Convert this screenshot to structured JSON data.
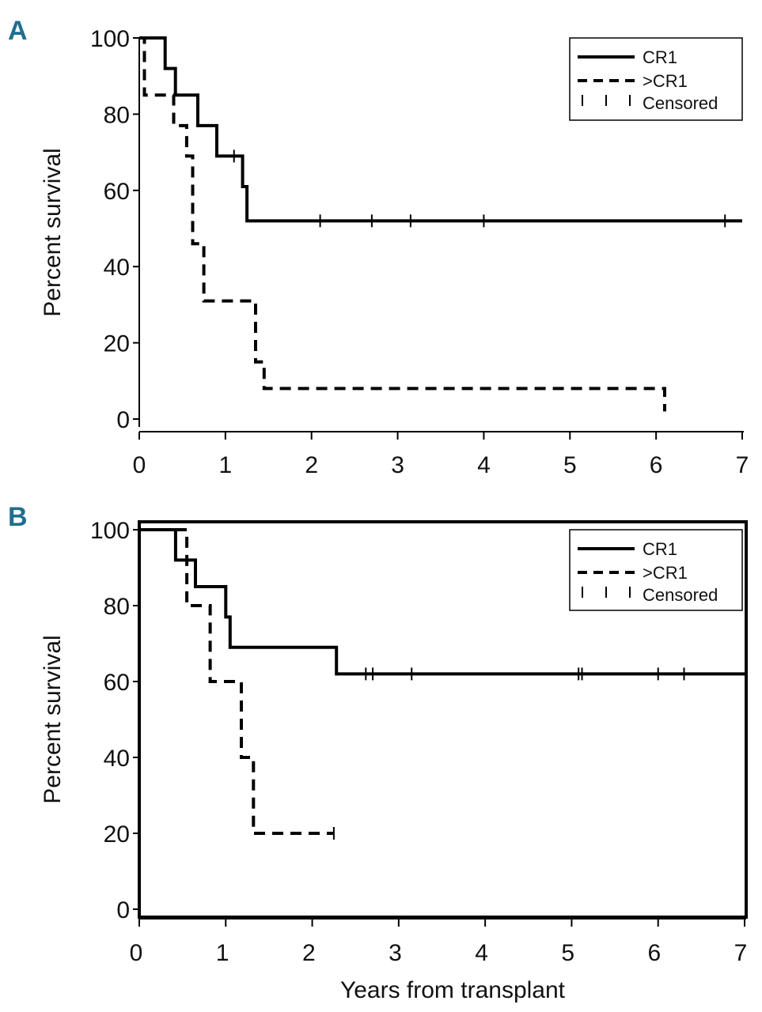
{
  "chart_data": [
    {
      "type": "line",
      "panel": "A",
      "ylabel": "Percent survival",
      "xlabel": "",
      "xlim": [
        0,
        7
      ],
      "ylim": [
        0,
        100
      ],
      "xticks": [
        0,
        1,
        2,
        3,
        4,
        5,
        6,
        7
      ],
      "yticks": [
        0,
        20,
        40,
        60,
        80,
        100
      ],
      "legend": {
        "position": "top-right",
        "censored_label": "Censored"
      },
      "series": [
        {
          "name": "CR1",
          "style": "solid",
          "x": [
            0,
            0.3,
            0.3,
            0.42,
            0.42,
            0.68,
            0.68,
            0.9,
            0.9,
            1.2,
            1.2,
            1.25,
            1.25,
            7
          ],
          "y": [
            100,
            100,
            92,
            92,
            85,
            85,
            77,
            77,
            69,
            69,
            61,
            61,
            52,
            52
          ],
          "censored_x": [
            1.1,
            2.1,
            2.7,
            3.15,
            4.0,
            6.8
          ]
        },
        {
          "name": ">CR1",
          "style": "dashed",
          "x": [
            0,
            0.06,
            0.06,
            0.4,
            0.4,
            0.55,
            0.55,
            0.62,
            0.62,
            0.75,
            0.75,
            1.35,
            1.35,
            1.45,
            1.45,
            1.78,
            1.78,
            6.1,
            6.1
          ],
          "y": [
            100,
            100,
            85,
            85,
            77,
            77,
            69,
            69,
            46,
            46,
            31,
            31,
            15,
            15,
            8,
            8,
            8,
            8,
            2
          ],
          "censored_x": []
        }
      ]
    },
    {
      "type": "line",
      "panel": "B",
      "ylabel": "Percent survival",
      "xlabel": "Years from transplant",
      "xlim": [
        0,
        7
      ],
      "ylim": [
        0,
        100
      ],
      "xticks": [
        0,
        1,
        2,
        3,
        4,
        5,
        6,
        7
      ],
      "yticks": [
        0,
        20,
        40,
        60,
        80,
        100
      ],
      "legend": {
        "position": "top-right",
        "censored_label": "Censored"
      },
      "series": [
        {
          "name": "CR1",
          "style": "solid",
          "x": [
            0,
            0.42,
            0.42,
            0.65,
            0.65,
            1.0,
            1.0,
            1.05,
            1.05,
            2.28,
            2.28,
            7
          ],
          "y": [
            100,
            100,
            92,
            92,
            85,
            85,
            77,
            77,
            69,
            69,
            62,
            62
          ],
          "censored_x": [
            2.62,
            2.7,
            3.15,
            5.08,
            5.12,
            6.0,
            6.3
          ]
        },
        {
          "name": ">CR1",
          "style": "dashed",
          "x": [
            0,
            0.55,
            0.55,
            0.82,
            0.82,
            1.18,
            1.18,
            1.32,
            1.32,
            2.25
          ],
          "y": [
            100,
            100,
            80,
            80,
            60,
            60,
            40,
            40,
            20,
            20
          ],
          "censored_x": [
            2.25
          ]
        }
      ]
    }
  ]
}
